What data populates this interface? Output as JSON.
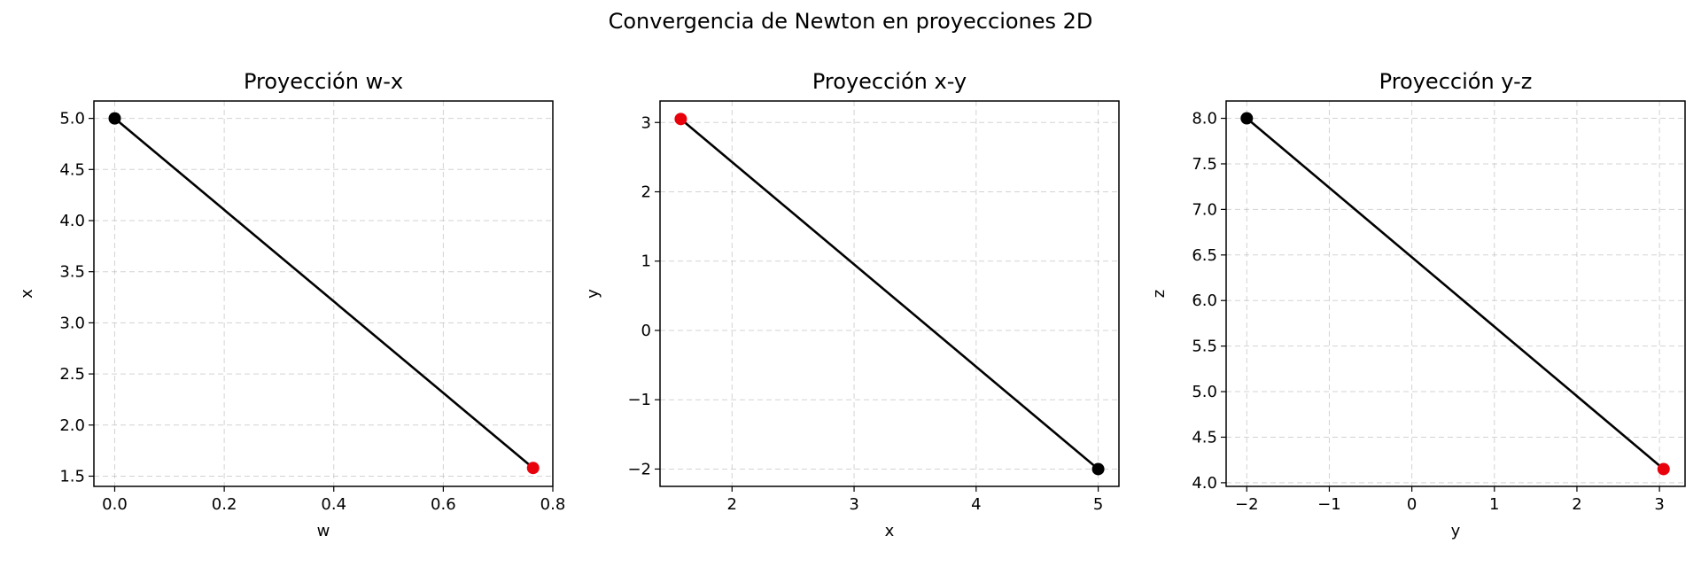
{
  "figure": {
    "title": "Convergencia de Newton en proyecciones 2D"
  },
  "chart_data": [
    {
      "type": "line",
      "title": "Proyección w-x",
      "xlabel": "w",
      "ylabel": "x",
      "xlim": [
        -0.038,
        0.8
      ],
      "ylim": [
        1.4,
        5.17
      ],
      "xticks": [
        0.0,
        0.2,
        0.4,
        0.6,
        0.8
      ],
      "xtick_labels": [
        "0.0",
        "0.2",
        "0.4",
        "0.6",
        "0.8"
      ],
      "yticks": [
        1.5,
        2.0,
        2.5,
        3.0,
        3.5,
        4.0,
        4.5,
        5.0
      ],
      "ytick_labels": [
        "1.5",
        "2.0",
        "2.5",
        "3.0",
        "3.5",
        "4.0",
        "4.5",
        "5.0"
      ],
      "grid": true,
      "series": [
        {
          "x": [
            0.0,
            0.764
          ],
          "y": [
            5.0,
            1.58
          ],
          "color": "#000000"
        }
      ],
      "start_point": {
        "x": 0.0,
        "y": 5.0,
        "color": "#000000"
      },
      "end_point": {
        "x": 0.764,
        "y": 1.58,
        "color": "#e8000b"
      }
    },
    {
      "type": "line",
      "title": "Proyección x-y",
      "xlabel": "x",
      "ylabel": "y",
      "xlim": [
        1.41,
        5.17
      ],
      "ylim": [
        -2.25,
        3.31
      ],
      "xticks": [
        2,
        3,
        4,
        5
      ],
      "xtick_labels": [
        "2",
        "3",
        "4",
        "5"
      ],
      "yticks": [
        -2,
        -1,
        0,
        1,
        2,
        3
      ],
      "ytick_labels": [
        "−2",
        "−1",
        "0",
        "1",
        "2",
        "3"
      ],
      "grid": true,
      "series": [
        {
          "x": [
            5.0,
            1.58
          ],
          "y": [
            -2.0,
            3.05
          ],
          "color": "#000000"
        }
      ],
      "start_point": {
        "x": 5.0,
        "y": -2.0,
        "color": "#000000"
      },
      "end_point": {
        "x": 1.58,
        "y": 3.05,
        "color": "#e8000b"
      }
    },
    {
      "type": "line",
      "title": "Proyección y-z",
      "xlabel": "y",
      "ylabel": "z",
      "xlim": [
        -2.25,
        3.31
      ],
      "ylim": [
        3.96,
        8.19
      ],
      "xticks": [
        -2,
        -1,
        0,
        1,
        2,
        3
      ],
      "xtick_labels": [
        "−2",
        "−1",
        "0",
        "1",
        "2",
        "3"
      ],
      "yticks": [
        4.0,
        4.5,
        5.0,
        5.5,
        6.0,
        6.5,
        7.0,
        7.5,
        8.0
      ],
      "ytick_labels": [
        "4.0",
        "4.5",
        "5.0",
        "5.5",
        "6.0",
        "6.5",
        "7.0",
        "7.5",
        "8.0"
      ],
      "grid": true,
      "series": [
        {
          "x": [
            -2.0,
            3.05
          ],
          "y": [
            8.0,
            4.15
          ],
          "color": "#000000"
        }
      ],
      "start_point": {
        "x": -2.0,
        "y": 8.0,
        "color": "#000000"
      },
      "end_point": {
        "x": 3.05,
        "y": 4.15,
        "color": "#e8000b"
      }
    }
  ]
}
